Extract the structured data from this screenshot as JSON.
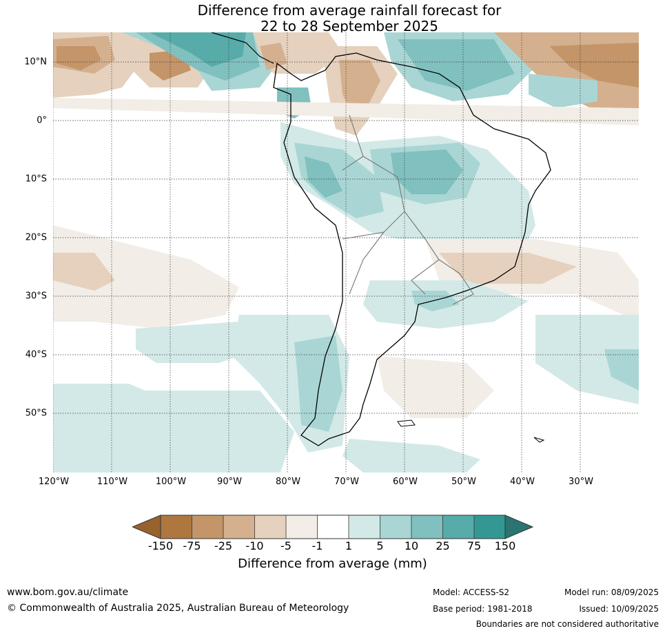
{
  "title": {
    "line1": "Difference from average rainfall forecast for",
    "line2": "22 to 28 September 2025"
  },
  "axes": {
    "lat_labels": [
      "10°N",
      "0°",
      "10°S",
      "20°S",
      "30°S",
      "40°S",
      "50°S"
    ],
    "lon_labels": [
      "120°W",
      "110°W",
      "100°W",
      "90°W",
      "80°W",
      "70°W",
      "60°W",
      "50°W",
      "40°W",
      "30°W"
    ]
  },
  "colorbar": {
    "label": "Difference from average (mm)",
    "ticks": [
      "-150",
      "-75",
      "-25",
      "-10",
      "-5",
      "-1",
      "1",
      "5",
      "10",
      "25",
      "75",
      "150"
    ],
    "colors": {
      "min_ext": "#98622f",
      "b1": "#ad773f",
      "b2": "#c39568",
      "b3": "#d4b08e",
      "b4": "#e5d1bd",
      "b5": "#f2ede6",
      "b6": "#ffffff",
      "b7": "#d3e9e7",
      "b8": "#a9d6d4",
      "b9": "#80c0bf",
      "b10": "#57aba9",
      "b11": "#339893",
      "max_ext": "#2b7471"
    }
  },
  "footer": {
    "website": "www.bom.gov.au/climate",
    "copyright": "© Commonwealth of Australia 2025, Australian Bureau of Meteorology",
    "model": "Model: ACCESS-S2",
    "model_run": "Model run: 08/09/2025",
    "base_period": "Base period: 1981-2018",
    "issued": "Issued: 10/09/2025",
    "disclaimer": "Boundaries are not considered authoritative"
  }
}
